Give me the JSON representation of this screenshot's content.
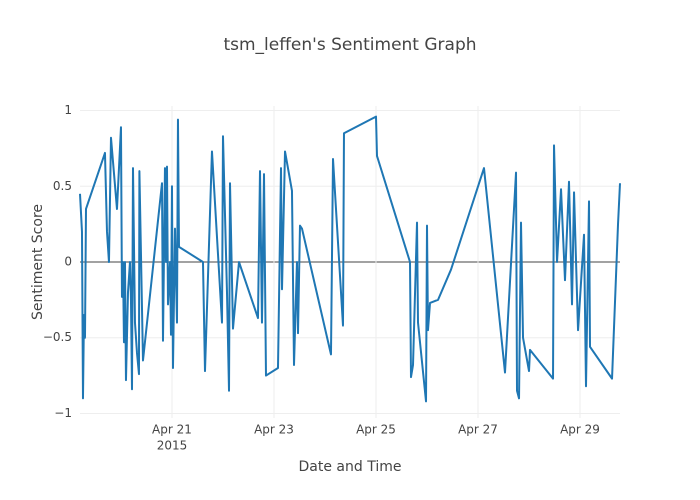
{
  "chart_data": {
    "type": "line",
    "title": "tsm_leffen's Sentiment Graph",
    "x_label": "Date and Time",
    "y_label": "Sentiment Score",
    "x": [
      "2015-04-19 04:43",
      "2015-04-19 05:39",
      "2015-04-19 06:07",
      "2015-04-19 06:35",
      "2015-04-19 07:04",
      "2015-04-19 07:32",
      "2015-04-19 16:28",
      "2015-04-19 17:25",
      "2015-04-19 18:21",
      "2015-04-19 19:18",
      "2015-04-19 22:07",
      "2015-04-20 00:00",
      "2015-04-20 00:28",
      "2015-04-20 00:56",
      "2015-04-20 01:25",
      "2015-04-20 01:53",
      "2015-04-20 02:21",
      "2015-04-20 03:18",
      "2015-04-20 04:14",
      "2015-04-20 04:42",
      "2015-04-20 05:11",
      "2015-04-20 05:39",
      "2015-04-20 06:35",
      "2015-04-20 07:32",
      "2015-04-20 08:28",
      "2015-04-20 08:40",
      "2015-04-20 10:21",
      "2015-04-20 19:18",
      "2015-04-20 19:46",
      "2015-04-20 20:42",
      "2015-04-20 21:11",
      "2015-04-20 21:39",
      "2015-04-20 22:07",
      "2015-04-20 23:04",
      "2015-04-20 23:32",
      "2015-04-21 00:00",
      "2015-04-21 00:28",
      "2015-04-21 01:25",
      "2015-04-21 02:21",
      "2015-04-21 02:49",
      "2015-04-21 03:18",
      "2015-04-21 14:35",
      "2015-04-21 15:32",
      "2015-04-21 18:49",
      "2015-04-21 23:32",
      "2015-04-22 00:00",
      "2015-04-22 01:53",
      "2015-04-22 02:50",
      "2015-04-22 03:18",
      "2015-04-22 04:42",
      "2015-04-22 07:32",
      "2015-04-22 16:28",
      "2015-04-22 17:25",
      "2015-04-22 18:21",
      "2015-04-22 19:18",
      "2015-04-22 20:14",
      "2015-04-23 01:53",
      "2015-04-23 03:18",
      "2015-04-23 03:46",
      "2015-04-23 05:11",
      "2015-04-23 08:28",
      "2015-04-23 09:25",
      "2015-04-23 10:49",
      "2015-04-23 11:18",
      "2015-04-23 12:14",
      "2015-04-23 13:11",
      "2015-04-24 02:49",
      "2015-04-24 03:46",
      "2015-04-24 08:28",
      "2015-04-24 08:56",
      "2015-04-25 00:00",
      "2015-04-25 00:28",
      "2015-04-25 16:00",
      "2015-04-25 16:28",
      "2015-04-25 17:25",
      "2015-04-25 19:18",
      "2015-04-25 19:46",
      "2015-04-25 23:32",
      "2015-04-26 00:00",
      "2015-04-26 00:28",
      "2015-04-26 01:25",
      "2015-04-26 05:11",
      "2015-04-26 11:18",
      "2015-04-27 02:49",
      "2015-04-27 12:42",
      "2015-04-27 17:53",
      "2015-04-27 18:21",
      "2015-04-27 19:18",
      "2015-04-27 20:14",
      "2015-04-27 21:11",
      "2015-04-28 00:00",
      "2015-04-28 00:28",
      "2015-04-28 11:18",
      "2015-04-28 11:46",
      "2015-04-28 13:11",
      "2015-04-28 15:04",
      "2015-04-28 16:56",
      "2015-04-28 18:49",
      "2015-04-28 20:14",
      "2015-04-28 21:11",
      "2015-04-28 23:04",
      "2015-04-29 01:53",
      "2015-04-29 02:49",
      "2015-04-29 04:14",
      "2015-04-29 04:42",
      "2015-04-29 15:04",
      "2015-04-29 17:53",
      "2015-04-29 18:49"
    ],
    "series": [
      {
        "color": "#1f77b4",
        "values": [
          0.45,
          0.2,
          -0.9,
          -0.35,
          -0.5,
          0.35,
          0.72,
          0.2,
          0,
          0.82,
          0.35,
          0.89,
          -0.23,
          0,
          -0.53,
          0,
          -0.78,
          -0.2,
          0,
          -0.25,
          -0.84,
          0.62,
          -0.4,
          -0.6,
          -0.74,
          0.6,
          -0.65,
          0.52,
          -0.52,
          0.62,
          0,
          0.63,
          -0.28,
          0,
          -0.48,
          0.5,
          -0.7,
          0.22,
          -0.4,
          0.94,
          0.1,
          0,
          -0.72,
          0.73,
          -0.4,
          0.83,
          -0.2,
          -0.85,
          0.52,
          -0.44,
          0,
          -0.37,
          0.6,
          -0.4,
          0.58,
          -0.75,
          -0.7,
          0.62,
          -0.18,
          0.73,
          0.47,
          -0.68,
          0,
          -0.47,
          0.24,
          0.22,
          -0.61,
          0.68,
          -0.42,
          0.85,
          0.96,
          0.7,
          0,
          -0.76,
          -0.68,
          0.26,
          -0.4,
          -0.92,
          0.24,
          -0.45,
          -0.27,
          -0.25,
          -0.05,
          0.62,
          -0.73,
          0.59,
          -0.85,
          -0.9,
          0.26,
          -0.5,
          -0.72,
          -0.58,
          -0.77,
          0.77,
          0,
          0.48,
          -0.12,
          0.53,
          -0.28,
          0.46,
          -0.45,
          0.18,
          -0.82,
          0.4,
          -0.56,
          -0.77,
          0.25,
          0.52
        ]
      }
    ],
    "xlim": [
      "2015-04-19 04:43",
      "2015-04-29 18:49"
    ],
    "xticks": [
      {
        "value": "2015-04-21",
        "label": "Apr 21"
      },
      {
        "value": "2015-04-23",
        "label": "Apr 23"
      },
      {
        "value": "2015-04-25",
        "label": "Apr 25"
      },
      {
        "value": "2015-04-27",
        "label": "Apr 27"
      },
      {
        "value": "2015-04-29",
        "label": "Apr 29"
      }
    ],
    "x_year_label": "2015",
    "ylim": [
      -1.03,
      1.03
    ],
    "yticks": [
      {
        "value": -1,
        "label": "−1"
      },
      {
        "value": -0.5,
        "label": "−0.5"
      },
      0,
      0.5,
      1
    ],
    "grid": true,
    "zeroline": true
  }
}
